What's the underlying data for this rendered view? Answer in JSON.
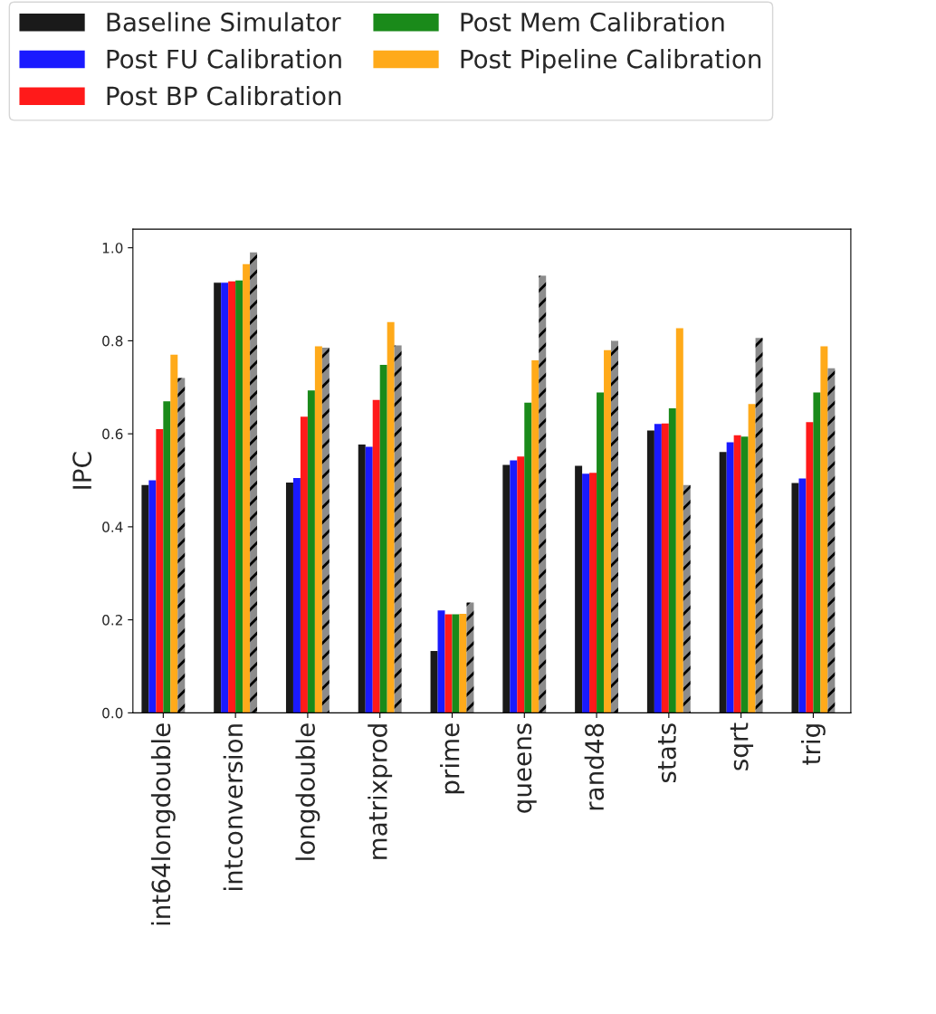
{
  "chart_data": {
    "type": "bar",
    "ylabel": "IPC",
    "categories": [
      "int64longdouble",
      "intconversion",
      "longdouble",
      "matrixprod",
      "prime",
      "queens",
      "rand48",
      "stats",
      "sqrt",
      "trig"
    ],
    "series": [
      {
        "name": "Baseline Simulator",
        "color": "#1a1a1a",
        "values": [
          0.49,
          0.925,
          0.495,
          0.577,
          0.133,
          0.533,
          0.531,
          0.607,
          0.561,
          0.494
        ]
      },
      {
        "name": "Post FU Calibration",
        "color": "#1a1aff",
        "values": [
          0.5,
          0.925,
          0.505,
          0.572,
          0.22,
          0.543,
          0.514,
          0.621,
          0.582,
          0.504
        ]
      },
      {
        "name": "Post BP Calibration",
        "color": "#ff1a1a",
        "values": [
          0.61,
          0.928,
          0.637,
          0.673,
          0.212,
          0.551,
          0.516,
          0.622,
          0.597,
          0.625
        ]
      },
      {
        "name": "Post Mem Calibration",
        "color": "#1a8a1a",
        "values": [
          0.67,
          0.93,
          0.693,
          0.748,
          0.212,
          0.667,
          0.689,
          0.655,
          0.594,
          0.689
        ]
      },
      {
        "name": "Post Pipeline Calibration",
        "color": "#ffaa1a",
        "values": [
          0.77,
          0.965,
          0.788,
          0.84,
          0.213,
          0.758,
          0.78,
          0.827,
          0.664,
          0.788
        ]
      },
      {
        "color": "#8c8c8c",
        "values": [
          0.72,
          0.99,
          0.785,
          0.79,
          0.237,
          0.94,
          0.8,
          0.49,
          0.806,
          0.741
        ]
      }
    ],
    "ylim": [
      0,
      1.04
    ],
    "yticks": [
      {
        "value": 0,
        "label": "0.0"
      },
      {
        "value": 0.2,
        "label": "0.2"
      },
      {
        "value": 0.4,
        "label": "0.4"
      },
      {
        "value": 0.6,
        "label": "0.6"
      },
      {
        "value": 0.8,
        "label": "0.8"
      },
      {
        "value": 1.0,
        "label": "1.0"
      }
    ],
    "grid": false,
    "legend": "top left"
  }
}
